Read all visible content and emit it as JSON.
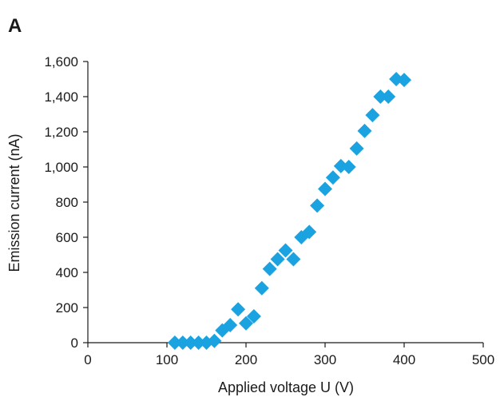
{
  "panel_label": "A",
  "chart_data": {
    "type": "scatter",
    "title": "",
    "xlabel": "Applied voltage U (V)",
    "ylabel": "Emission current (nA)",
    "xlim": [
      0,
      500
    ],
    "ylim": [
      0,
      1600
    ],
    "x_ticks": [
      0,
      100,
      200,
      300,
      400,
      500
    ],
    "x_tick_labels": [
      "0",
      "100",
      "200",
      "300",
      "400",
      "500"
    ],
    "y_ticks": [
      0,
      200,
      400,
      600,
      800,
      1000,
      1200,
      1400,
      1600
    ],
    "y_tick_labels": [
      "0",
      "200",
      "400",
      "600",
      "800",
      "1,000",
      "1,200",
      "1,400",
      "1,600"
    ],
    "grid": false,
    "marker": "diamond",
    "marker_color": "#1aa3e0",
    "series": [
      {
        "x": [
          110,
          120,
          130,
          140,
          150,
          160,
          170,
          180,
          190,
          200,
          210,
          220,
          230,
          240,
          250,
          260,
          270,
          280,
          290,
          300,
          310,
          320,
          330,
          340,
          350,
          360,
          370,
          380,
          390,
          400
        ],
        "y": [
          0,
          0,
          0,
          0,
          0,
          10,
          70,
          100,
          190,
          110,
          150,
          310,
          420,
          475,
          525,
          475,
          600,
          630,
          780,
          875,
          940,
          1005,
          1000,
          1105,
          1205,
          1295,
          1400,
          1400,
          1500,
          1495
        ]
      }
    ]
  }
}
